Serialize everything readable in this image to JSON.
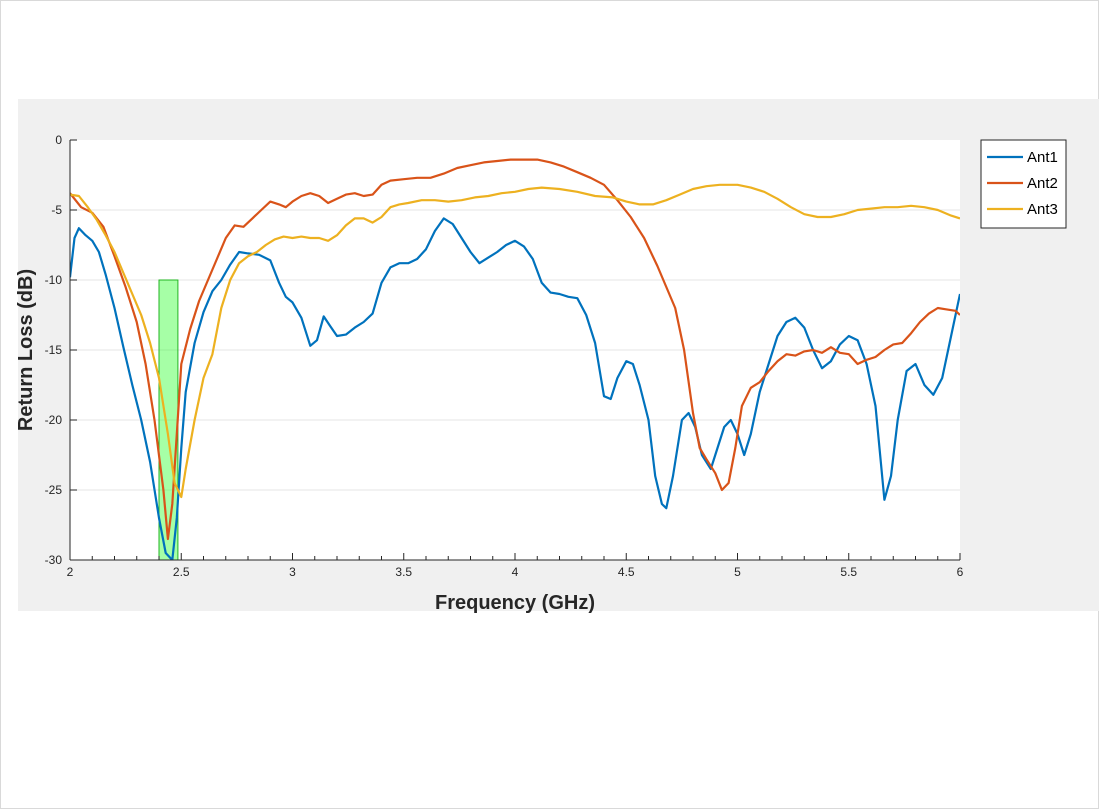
{
  "chart_data": {
    "type": "line",
    "title": "",
    "xlabel": "Frequency (GHz)",
    "ylabel": "Return Loss (dB)",
    "xlim": [
      2,
      6
    ],
    "ylim": [
      -30,
      0
    ],
    "x_ticks": [
      2,
      2.5,
      3,
      3.5,
      4,
      4.5,
      5,
      5.5,
      6
    ],
    "x_tick_labels": [
      "2",
      "2.5",
      "3",
      "3.5",
      "4",
      "4.5",
      "5",
      "5.5",
      "6"
    ],
    "y_ticks": [
      0,
      -5,
      -10,
      -15,
      -20,
      -25,
      -30
    ],
    "y_tick_labels": [
      "0",
      "-5",
      "-10",
      "-15",
      "-20",
      "-25",
      "-30"
    ],
    "grid": "horizontal",
    "legend_position": "outside-top-right",
    "highlight_band": {
      "x": [
        2.4,
        2.485
      ],
      "y_top": -10,
      "color": "#00ff00"
    },
    "series": [
      {
        "name": "Ant1",
        "color": "#0072bd",
        "points": [
          [
            2,
            -9.8
          ],
          [
            2.02,
            -7
          ],
          [
            2.04,
            -6.3
          ],
          [
            2.07,
            -6.8
          ],
          [
            2.1,
            -7.2
          ],
          [
            2.13,
            -8
          ],
          [
            2.16,
            -9.6
          ],
          [
            2.2,
            -12
          ],
          [
            2.24,
            -14.8
          ],
          [
            2.28,
            -17.5
          ],
          [
            2.32,
            -20
          ],
          [
            2.36,
            -23
          ],
          [
            2.4,
            -27
          ],
          [
            2.43,
            -29.5
          ],
          [
            2.46,
            -30
          ],
          [
            2.48,
            -27
          ],
          [
            2.5,
            -22
          ],
          [
            2.52,
            -18
          ],
          [
            2.56,
            -14.5
          ],
          [
            2.6,
            -12.3
          ],
          [
            2.64,
            -10.8
          ],
          [
            2.68,
            -10
          ],
          [
            2.72,
            -8.9
          ],
          [
            2.76,
            -8
          ],
          [
            2.8,
            -8.1
          ],
          [
            2.85,
            -8.2
          ],
          [
            2.9,
            -8.6
          ],
          [
            2.94,
            -10.2
          ],
          [
            2.97,
            -11.2
          ],
          [
            3,
            -11.6
          ],
          [
            3.04,
            -12.7
          ],
          [
            3.08,
            -14.7
          ],
          [
            3.11,
            -14.3
          ],
          [
            3.14,
            -12.6
          ],
          [
            3.17,
            -13.3
          ],
          [
            3.2,
            -14
          ],
          [
            3.24,
            -13.9
          ],
          [
            3.28,
            -13.4
          ],
          [
            3.32,
            -13
          ],
          [
            3.36,
            -12.4
          ],
          [
            3.4,
            -10.2
          ],
          [
            3.44,
            -9.1
          ],
          [
            3.48,
            -8.8
          ],
          [
            3.52,
            -8.8
          ],
          [
            3.56,
            -8.5
          ],
          [
            3.6,
            -7.8
          ],
          [
            3.64,
            -6.5
          ],
          [
            3.68,
            -5.6
          ],
          [
            3.72,
            -6
          ],
          [
            3.76,
            -7
          ],
          [
            3.8,
            -8
          ],
          [
            3.84,
            -8.8
          ],
          [
            3.88,
            -8.4
          ],
          [
            3.92,
            -8
          ],
          [
            3.96,
            -7.5
          ],
          [
            4,
            -7.2
          ],
          [
            4.04,
            -7.6
          ],
          [
            4.08,
            -8.5
          ],
          [
            4.12,
            -10.2
          ],
          [
            4.16,
            -10.9
          ],
          [
            4.2,
            -11
          ],
          [
            4.24,
            -11.2
          ],
          [
            4.28,
            -11.3
          ],
          [
            4.32,
            -12.5
          ],
          [
            4.36,
            -14.5
          ],
          [
            4.4,
            -18.3
          ],
          [
            4.43,
            -18.5
          ],
          [
            4.46,
            -17
          ],
          [
            4.5,
            -15.8
          ],
          [
            4.53,
            -16
          ],
          [
            4.56,
            -17.5
          ],
          [
            4.6,
            -20
          ],
          [
            4.63,
            -24
          ],
          [
            4.66,
            -26
          ],
          [
            4.68,
            -26.3
          ],
          [
            4.71,
            -24
          ],
          [
            4.75,
            -20
          ],
          [
            4.78,
            -19.5
          ],
          [
            4.81,
            -20.5
          ],
          [
            4.84,
            -22.5
          ],
          [
            4.88,
            -23.5
          ],
          [
            4.91,
            -22
          ],
          [
            4.94,
            -20.5
          ],
          [
            4.97,
            -20
          ],
          [
            5,
            -21
          ],
          [
            5.03,
            -22.5
          ],
          [
            5.06,
            -21
          ],
          [
            5.1,
            -18
          ],
          [
            5.14,
            -16
          ],
          [
            5.18,
            -14
          ],
          [
            5.22,
            -13
          ],
          [
            5.26,
            -12.7
          ],
          [
            5.3,
            -13.4
          ],
          [
            5.34,
            -15
          ],
          [
            5.38,
            -16.3
          ],
          [
            5.42,
            -15.8
          ],
          [
            5.46,
            -14.6
          ],
          [
            5.5,
            -14
          ],
          [
            5.54,
            -14.3
          ],
          [
            5.58,
            -16
          ],
          [
            5.62,
            -19
          ],
          [
            5.66,
            -25.7
          ],
          [
            5.69,
            -24
          ],
          [
            5.72,
            -20
          ],
          [
            5.76,
            -16.5
          ],
          [
            5.8,
            -16
          ],
          [
            5.84,
            -17.5
          ],
          [
            5.88,
            -18.2
          ],
          [
            5.92,
            -17
          ],
          [
            5.96,
            -14
          ],
          [
            6,
            -11
          ]
        ]
      },
      {
        "name": "Ant2",
        "color": "#d95319",
        "points": [
          [
            2,
            -3.8
          ],
          [
            2.05,
            -4.8
          ],
          [
            2.1,
            -5.2
          ],
          [
            2.15,
            -6.2
          ],
          [
            2.2,
            -8.3
          ],
          [
            2.25,
            -10.5
          ],
          [
            2.3,
            -13
          ],
          [
            2.34,
            -16
          ],
          [
            2.38,
            -20
          ],
          [
            2.42,
            -25
          ],
          [
            2.44,
            -28.5
          ],
          [
            2.46,
            -26
          ],
          [
            2.48,
            -21
          ],
          [
            2.5,
            -16
          ],
          [
            2.54,
            -13.5
          ],
          [
            2.58,
            -11.5
          ],
          [
            2.62,
            -10
          ],
          [
            2.66,
            -8.5
          ],
          [
            2.7,
            -7
          ],
          [
            2.74,
            -6.1
          ],
          [
            2.78,
            -6.2
          ],
          [
            2.82,
            -5.6
          ],
          [
            2.86,
            -5
          ],
          [
            2.9,
            -4.4
          ],
          [
            2.94,
            -4.6
          ],
          [
            2.97,
            -4.8
          ],
          [
            3,
            -4.4
          ],
          [
            3.04,
            -4
          ],
          [
            3.08,
            -3.8
          ],
          [
            3.12,
            -4
          ],
          [
            3.16,
            -4.5
          ],
          [
            3.2,
            -4.2
          ],
          [
            3.24,
            -3.9
          ],
          [
            3.28,
            -3.8
          ],
          [
            3.32,
            -4
          ],
          [
            3.36,
            -3.9
          ],
          [
            3.4,
            -3.2
          ],
          [
            3.44,
            -2.9
          ],
          [
            3.5,
            -2.8
          ],
          [
            3.56,
            -2.7
          ],
          [
            3.62,
            -2.7
          ],
          [
            3.68,
            -2.4
          ],
          [
            3.74,
            -2
          ],
          [
            3.8,
            -1.8
          ],
          [
            3.86,
            -1.6
          ],
          [
            3.92,
            -1.5
          ],
          [
            3.98,
            -1.4
          ],
          [
            4.04,
            -1.4
          ],
          [
            4.1,
            -1.4
          ],
          [
            4.16,
            -1.6
          ],
          [
            4.22,
            -1.9
          ],
          [
            4.28,
            -2.3
          ],
          [
            4.34,
            -2.7
          ],
          [
            4.4,
            -3.2
          ],
          [
            4.46,
            -4.3
          ],
          [
            4.52,
            -5.5
          ],
          [
            4.58,
            -7
          ],
          [
            4.64,
            -9
          ],
          [
            4.68,
            -10.5
          ],
          [
            4.72,
            -12
          ],
          [
            4.76,
            -15
          ],
          [
            4.8,
            -19.5
          ],
          [
            4.83,
            -22
          ],
          [
            4.86,
            -22.8
          ],
          [
            4.9,
            -23.8
          ],
          [
            4.93,
            -25
          ],
          [
            4.96,
            -24.5
          ],
          [
            4.99,
            -22
          ],
          [
            5.02,
            -19
          ],
          [
            5.06,
            -17.7
          ],
          [
            5.1,
            -17.3
          ],
          [
            5.14,
            -16.5
          ],
          [
            5.18,
            -15.8
          ],
          [
            5.22,
            -15.3
          ],
          [
            5.26,
            -15.4
          ],
          [
            5.3,
            -15.1
          ],
          [
            5.34,
            -15
          ],
          [
            5.38,
            -15.2
          ],
          [
            5.42,
            -14.8
          ],
          [
            5.46,
            -15.2
          ],
          [
            5.5,
            -15.3
          ],
          [
            5.54,
            -16
          ],
          [
            5.58,
            -15.7
          ],
          [
            5.62,
            -15.5
          ],
          [
            5.66,
            -15
          ],
          [
            5.7,
            -14.6
          ],
          [
            5.74,
            -14.5
          ],
          [
            5.78,
            -13.8
          ],
          [
            5.82,
            -13
          ],
          [
            5.86,
            -12.4
          ],
          [
            5.9,
            -12
          ],
          [
            5.94,
            -12.1
          ],
          [
            5.98,
            -12.2
          ],
          [
            6,
            -12.5
          ]
        ]
      },
      {
        "name": "Ant3",
        "color": "#edb120",
        "points": [
          [
            2,
            -3.9
          ],
          [
            2.04,
            -4
          ],
          [
            2.08,
            -4.8
          ],
          [
            2.12,
            -5.7
          ],
          [
            2.16,
            -6.8
          ],
          [
            2.2,
            -8
          ],
          [
            2.24,
            -9.5
          ],
          [
            2.28,
            -11
          ],
          [
            2.32,
            -12.5
          ],
          [
            2.36,
            -14.5
          ],
          [
            2.4,
            -17
          ],
          [
            2.44,
            -21
          ],
          [
            2.47,
            -24.5
          ],
          [
            2.5,
            -25.5
          ],
          [
            2.52,
            -23.5
          ],
          [
            2.56,
            -20
          ],
          [
            2.6,
            -17
          ],
          [
            2.64,
            -15.3
          ],
          [
            2.68,
            -12
          ],
          [
            2.72,
            -10
          ],
          [
            2.76,
            -8.8
          ],
          [
            2.8,
            -8.3
          ],
          [
            2.84,
            -8
          ],
          [
            2.88,
            -7.5
          ],
          [
            2.92,
            -7.1
          ],
          [
            2.96,
            -6.9
          ],
          [
            3,
            -7
          ],
          [
            3.04,
            -6.9
          ],
          [
            3.08,
            -7
          ],
          [
            3.12,
            -7
          ],
          [
            3.16,
            -7.2
          ],
          [
            3.2,
            -6.8
          ],
          [
            3.24,
            -6.1
          ],
          [
            3.28,
            -5.6
          ],
          [
            3.32,
            -5.6
          ],
          [
            3.36,
            -5.9
          ],
          [
            3.4,
            -5.5
          ],
          [
            3.44,
            -4.8
          ],
          [
            3.48,
            -4.6
          ],
          [
            3.52,
            -4.5
          ],
          [
            3.58,
            -4.3
          ],
          [
            3.64,
            -4.3
          ],
          [
            3.7,
            -4.4
          ],
          [
            3.76,
            -4.3
          ],
          [
            3.82,
            -4.1
          ],
          [
            3.88,
            -4
          ],
          [
            3.94,
            -3.8
          ],
          [
            4,
            -3.7
          ],
          [
            4.06,
            -3.5
          ],
          [
            4.12,
            -3.4
          ],
          [
            4.2,
            -3.5
          ],
          [
            4.28,
            -3.7
          ],
          [
            4.36,
            -4
          ],
          [
            4.44,
            -4.1
          ],
          [
            4.5,
            -4.4
          ],
          [
            4.56,
            -4.6
          ],
          [
            4.62,
            -4.6
          ],
          [
            4.68,
            -4.3
          ],
          [
            4.74,
            -3.9
          ],
          [
            4.8,
            -3.5
          ],
          [
            4.86,
            -3.3
          ],
          [
            4.92,
            -3.2
          ],
          [
            5,
            -3.2
          ],
          [
            5.06,
            -3.4
          ],
          [
            5.12,
            -3.7
          ],
          [
            5.18,
            -4.2
          ],
          [
            5.24,
            -4.8
          ],
          [
            5.3,
            -5.3
          ],
          [
            5.36,
            -5.5
          ],
          [
            5.42,
            -5.5
          ],
          [
            5.48,
            -5.3
          ],
          [
            5.54,
            -5
          ],
          [
            5.6,
            -4.9
          ],
          [
            5.66,
            -4.8
          ],
          [
            5.72,
            -4.8
          ],
          [
            5.78,
            -4.7
          ],
          [
            5.84,
            -4.8
          ],
          [
            5.9,
            -5
          ],
          [
            5.96,
            -5.4
          ],
          [
            6,
            -5.6
          ]
        ]
      }
    ]
  }
}
